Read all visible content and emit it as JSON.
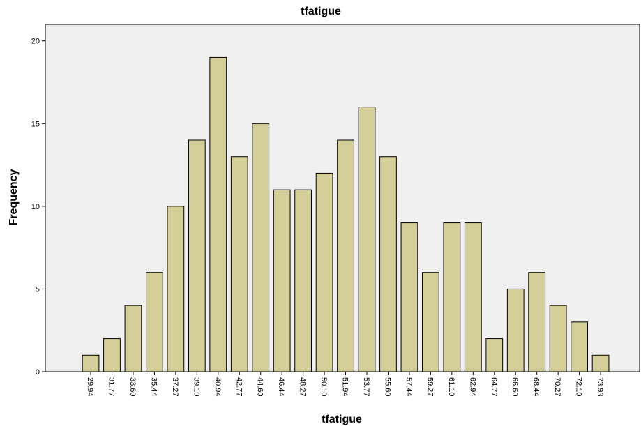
{
  "chart_data": {
    "type": "bar",
    "title": "tfatigue",
    "x_label": "tfatigue",
    "y_label": "Frequency",
    "categories": [
      "29.94",
      "31.77",
      "33.60",
      "35.44",
      "37.27",
      "39.10",
      "40.94",
      "42.77",
      "44.60",
      "46.44",
      "48.27",
      "50.10",
      "51.94",
      "53.77",
      "55.60",
      "57.44",
      "59.27",
      "61.10",
      "62.94",
      "64.77",
      "66.60",
      "68.44",
      "70.27",
      "72.10",
      "73.93"
    ],
    "values": [
      1,
      2,
      4,
      6,
      10,
      14,
      19,
      13,
      15,
      11,
      11,
      12,
      14,
      16,
      13,
      9,
      6,
      9,
      9,
      2,
      5,
      6,
      4,
      3,
      1
    ],
    "color": "#d4cf98",
    "ylim": [
      0,
      21
    ],
    "yticks": [
      0,
      5,
      10,
      15,
      20
    ],
    "grid": false
  }
}
